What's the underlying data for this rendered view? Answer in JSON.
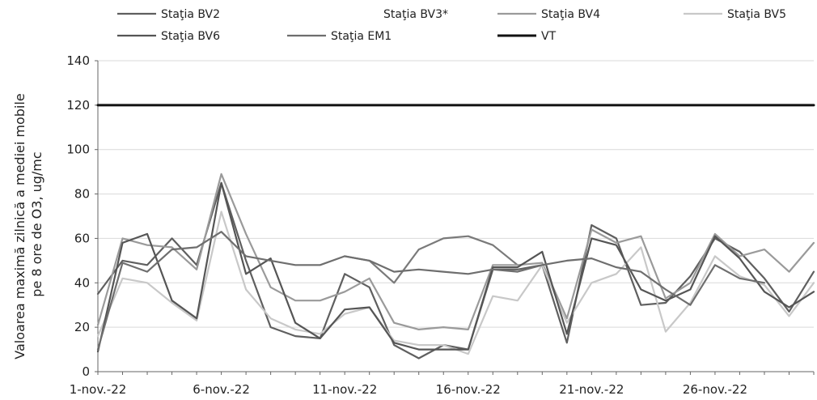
{
  "chart_data": {
    "type": "line",
    "title": "",
    "ylabel_line1": "Valoarea maximă zilnică a mediei mobile",
    "ylabel_line2": "pe 8 ore de O3, ug/mc",
    "xlabel": "",
    "ylim": [
      0,
      140
    ],
    "y_ticks": [
      "0",
      "20",
      "40",
      "60",
      "80",
      "100",
      "120",
      "140"
    ],
    "x": [
      "1-nov.-22",
      "2-nov.-22",
      "3-nov.-22",
      "4-nov.-22",
      "5-nov.-22",
      "6-nov.-22",
      "7-nov.-22",
      "8-nov.-22",
      "9-nov.-22",
      "10-nov.-22",
      "11-nov.-22",
      "12-nov.-22",
      "13-nov.-22",
      "14-nov.-22",
      "15-nov.-22",
      "16-nov.-22",
      "17-nov.-22",
      "18-nov.-22",
      "19-nov.-22",
      "20-nov.-22",
      "21-nov.-22",
      "22-nov.-22",
      "23-nov.-22",
      "24-nov.-22",
      "25-nov.-22",
      "26-nov.-22",
      "27-nov.-22",
      "28-nov.-22",
      "29-nov.-22",
      "30-nov.-22"
    ],
    "x_tick_labels": [
      "1-nov.-22",
      "6-nov.-22",
      "11-nov.-22",
      "16-nov.-22",
      "21-nov.-22",
      "26-nov.-22"
    ],
    "x_tick_indices": [
      0,
      5,
      10,
      15,
      20,
      25
    ],
    "grid": "horizontal",
    "legend_position": "top",
    "series": [
      {
        "name": "Staţia BV2",
        "color": "#5f5f5f",
        "values": [
          35,
          50,
          48,
          60,
          48,
          85,
          50,
          20,
          16,
          15,
          44,
          38,
          12,
          6,
          12,
          10,
          46,
          46,
          48,
          13,
          66,
          60,
          30,
          31,
          43,
          60,
          54,
          42,
          27,
          45
        ]
      },
      {
        "name": "Staţia BV3*",
        "color": "#7a7a7a",
        "values": [
          null,
          null,
          null,
          null,
          null,
          null,
          null,
          null,
          null,
          null,
          52,
          50,
          40,
          55,
          60,
          61,
          57,
          48,
          null,
          null,
          null,
          null,
          null,
          null,
          null,
          null,
          null,
          null,
          null,
          null
        ]
      },
      {
        "name": "Staţia BV4",
        "color": "#9a9a9a",
        "values": [
          21,
          60,
          57,
          56,
          46,
          89,
          62,
          38,
          32,
          32,
          36,
          42,
          22,
          19,
          20,
          19,
          48,
          48,
          49,
          24,
          64,
          58,
          61,
          33,
          40,
          62,
          52,
          55,
          45,
          58
        ]
      },
      {
        "name": "Staţia BV5",
        "color": "#c8c8c8",
        "values": [
          16,
          42,
          40,
          31,
          23,
          72,
          37,
          24,
          19,
          17,
          26,
          29,
          14,
          12,
          12,
          8,
          34,
          32,
          48,
          22,
          40,
          44,
          56,
          18,
          31,
          52,
          43,
          39,
          25,
          40
        ]
      },
      {
        "name": "Staţia BV6",
        "color": "#555555",
        "values": [
          9,
          58,
          62,
          32,
          24,
          85,
          44,
          51,
          22,
          15,
          28,
          29,
          13,
          10,
          10,
          10,
          47,
          47,
          54,
          17,
          60,
          57,
          37,
          32,
          37,
          61,
          51,
          36,
          29,
          36
        ]
      },
      {
        "name": "Staţia EM1",
        "color": "#6e6e6e",
        "values": [
          10,
          49,
          45,
          55,
          56,
          63,
          52,
          50,
          48,
          48,
          52,
          50,
          45,
          46,
          45,
          44,
          46,
          45,
          48,
          50,
          51,
          47,
          45,
          37,
          30,
          48,
          42,
          40,
          null,
          38
        ]
      },
      {
        "name": "VT",
        "color": "#111111",
        "values": [
          120,
          120,
          120,
          120,
          120,
          120,
          120,
          120,
          120,
          120,
          120,
          120,
          120,
          120,
          120,
          120,
          120,
          120,
          120,
          120,
          120,
          120,
          120,
          120,
          120,
          120,
          120,
          120,
          120,
          120
        ]
      }
    ]
  }
}
